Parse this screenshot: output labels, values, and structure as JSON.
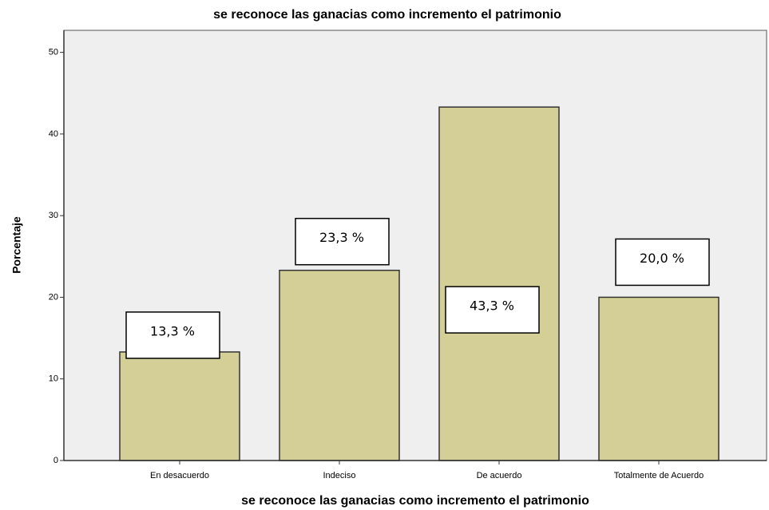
{
  "chart_data": {
    "type": "bar",
    "title": "se reconoce las ganacias como incremento el patrimonio",
    "x_label": "se reconoce las ganacias como incremento el patrimonio",
    "y_label": "Porcentaje",
    "categories": [
      "En desacuerdo",
      "Indeciso",
      "De acuerdo",
      "Totalmente de Acuerdo"
    ],
    "values": [
      13.3,
      23.3,
      43.3,
      20.0
    ],
    "value_labels": [
      "13,3 %",
      "23,3 %",
      "43,3 %",
      "20,0 %"
    ],
    "color": "#d4cf96",
    "ylim": [
      0,
      52.7
    ],
    "yticks": [
      0,
      10,
      20,
      30,
      40,
      50
    ]
  }
}
